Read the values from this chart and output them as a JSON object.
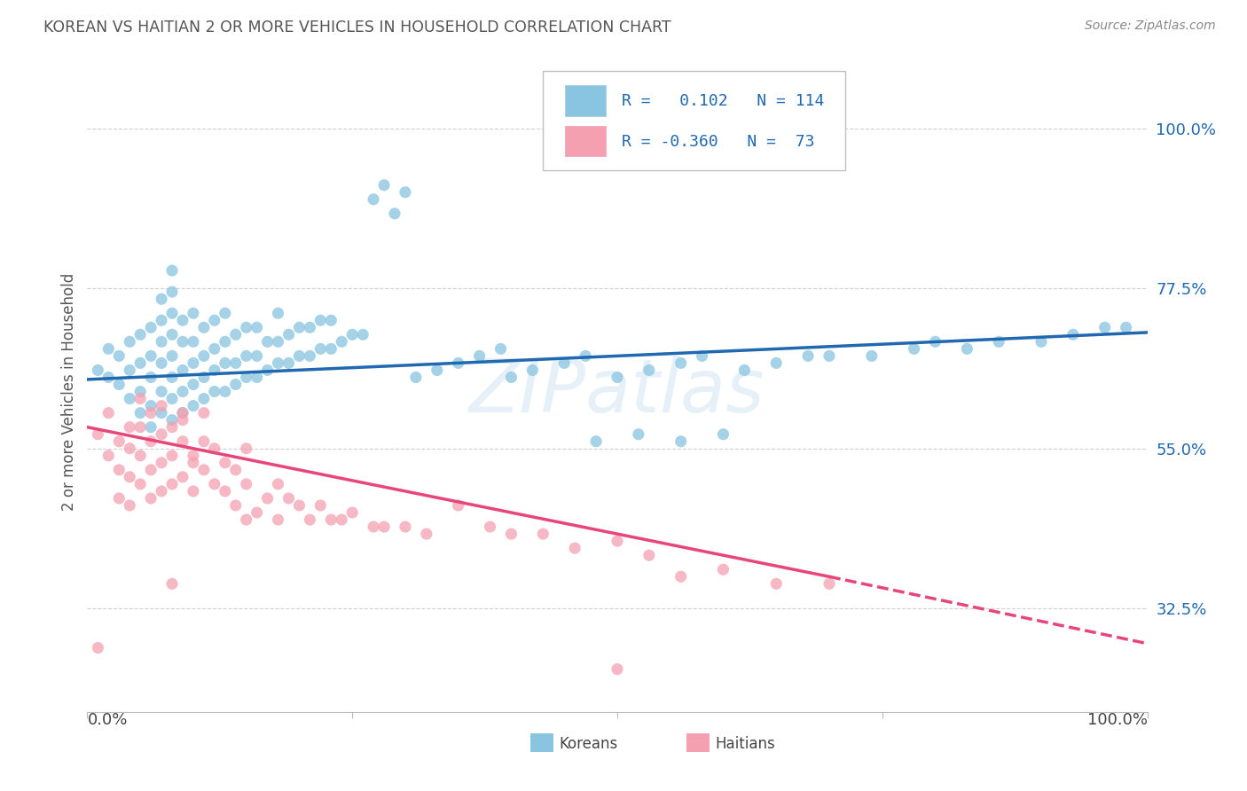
{
  "title": "KOREAN VS HAITIAN 2 OR MORE VEHICLES IN HOUSEHOLD CORRELATION CHART",
  "source": "Source: ZipAtlas.com",
  "ylabel": "2 or more Vehicles in Household",
  "watermark": "ZIPatlas",
  "xlim": [
    0.0,
    1.0
  ],
  "ylim": [
    0.18,
    1.08
  ],
  "yticks": [
    0.325,
    0.55,
    0.775,
    1.0
  ],
  "ytick_labels": [
    "32.5%",
    "55.0%",
    "77.5%",
    "100.0%"
  ],
  "korean_color": "#89c4e1",
  "haitian_color": "#f4a0b0",
  "korean_line_color": "#2068b0",
  "haitian_line_color": "#e8457a",
  "legend_korean_R": "0.102",
  "legend_korean_N": "114",
  "legend_haitian_R": "-0.360",
  "legend_haitian_N": "73",
  "background_color": "#ffffff",
  "grid_color": "#d0d0d0",
  "title_color": "#555555",
  "legend_text_color": "#2068b0",
  "korean_alpha": 0.75,
  "haitian_alpha": 0.75,
  "dot_size": 90,
  "korean_x": [
    0.01,
    0.02,
    0.02,
    0.03,
    0.03,
    0.04,
    0.04,
    0.04,
    0.05,
    0.05,
    0.05,
    0.05,
    0.06,
    0.06,
    0.06,
    0.06,
    0.06,
    0.07,
    0.07,
    0.07,
    0.07,
    0.07,
    0.07,
    0.08,
    0.08,
    0.08,
    0.08,
    0.08,
    0.08,
    0.08,
    0.08,
    0.09,
    0.09,
    0.09,
    0.09,
    0.09,
    0.1,
    0.1,
    0.1,
    0.1,
    0.1,
    0.11,
    0.11,
    0.11,
    0.11,
    0.12,
    0.12,
    0.12,
    0.12,
    0.13,
    0.13,
    0.13,
    0.13,
    0.14,
    0.14,
    0.14,
    0.15,
    0.15,
    0.15,
    0.16,
    0.16,
    0.16,
    0.17,
    0.17,
    0.18,
    0.18,
    0.18,
    0.19,
    0.19,
    0.2,
    0.2,
    0.21,
    0.21,
    0.22,
    0.22,
    0.23,
    0.23,
    0.24,
    0.25,
    0.26,
    0.27,
    0.28,
    0.29,
    0.3,
    0.31,
    0.33,
    0.35,
    0.37,
    0.39,
    0.4,
    0.42,
    0.45,
    0.47,
    0.5,
    0.53,
    0.56,
    0.58,
    0.62,
    0.65,
    0.68,
    0.7,
    0.74,
    0.78,
    0.8,
    0.83,
    0.86,
    0.9,
    0.93,
    0.96,
    0.98,
    0.48,
    0.52,
    0.56,
    0.6
  ],
  "korean_y": [
    0.66,
    0.65,
    0.69,
    0.64,
    0.68,
    0.62,
    0.66,
    0.7,
    0.6,
    0.63,
    0.67,
    0.71,
    0.58,
    0.61,
    0.65,
    0.68,
    0.72,
    0.6,
    0.63,
    0.67,
    0.7,
    0.73,
    0.76,
    0.59,
    0.62,
    0.65,
    0.68,
    0.71,
    0.74,
    0.77,
    0.8,
    0.6,
    0.63,
    0.66,
    0.7,
    0.73,
    0.61,
    0.64,
    0.67,
    0.7,
    0.74,
    0.62,
    0.65,
    0.68,
    0.72,
    0.63,
    0.66,
    0.69,
    0.73,
    0.63,
    0.67,
    0.7,
    0.74,
    0.64,
    0.67,
    0.71,
    0.65,
    0.68,
    0.72,
    0.65,
    0.68,
    0.72,
    0.66,
    0.7,
    0.67,
    0.7,
    0.74,
    0.67,
    0.71,
    0.68,
    0.72,
    0.68,
    0.72,
    0.69,
    0.73,
    0.69,
    0.73,
    0.7,
    0.71,
    0.71,
    0.9,
    0.92,
    0.88,
    0.91,
    0.65,
    0.66,
    0.67,
    0.68,
    0.69,
    0.65,
    0.66,
    0.67,
    0.68,
    0.65,
    0.66,
    0.67,
    0.68,
    0.66,
    0.67,
    0.68,
    0.68,
    0.68,
    0.69,
    0.7,
    0.69,
    0.7,
    0.7,
    0.71,
    0.72,
    0.72,
    0.56,
    0.57,
    0.56,
    0.57
  ],
  "haitian_x": [
    0.01,
    0.01,
    0.02,
    0.02,
    0.03,
    0.03,
    0.03,
    0.04,
    0.04,
    0.04,
    0.04,
    0.05,
    0.05,
    0.05,
    0.05,
    0.06,
    0.06,
    0.06,
    0.06,
    0.07,
    0.07,
    0.07,
    0.07,
    0.08,
    0.08,
    0.08,
    0.09,
    0.09,
    0.09,
    0.1,
    0.1,
    0.11,
    0.11,
    0.11,
    0.12,
    0.12,
    0.13,
    0.13,
    0.14,
    0.14,
    0.15,
    0.15,
    0.16,
    0.17,
    0.18,
    0.18,
    0.19,
    0.2,
    0.21,
    0.22,
    0.23,
    0.24,
    0.25,
    0.27,
    0.28,
    0.3,
    0.32,
    0.35,
    0.38,
    0.4,
    0.43,
    0.46,
    0.5,
    0.53,
    0.56,
    0.6,
    0.65,
    0.7,
    0.5,
    0.08,
    0.09,
    0.1,
    0.15
  ],
  "haitian_y": [
    0.27,
    0.57,
    0.54,
    0.6,
    0.56,
    0.52,
    0.48,
    0.55,
    0.51,
    0.47,
    0.58,
    0.54,
    0.5,
    0.58,
    0.62,
    0.56,
    0.52,
    0.48,
    0.6,
    0.53,
    0.49,
    0.57,
    0.61,
    0.5,
    0.54,
    0.58,
    0.51,
    0.56,
    0.6,
    0.49,
    0.53,
    0.52,
    0.56,
    0.6,
    0.5,
    0.55,
    0.49,
    0.53,
    0.47,
    0.52,
    0.5,
    0.55,
    0.46,
    0.48,
    0.5,
    0.45,
    0.48,
    0.47,
    0.45,
    0.47,
    0.45,
    0.45,
    0.46,
    0.44,
    0.44,
    0.44,
    0.43,
    0.47,
    0.44,
    0.43,
    0.43,
    0.41,
    0.42,
    0.4,
    0.37,
    0.38,
    0.36,
    0.36,
    0.24,
    0.36,
    0.59,
    0.54,
    0.45
  ],
  "korean_line_x0": 0.0,
  "korean_line_y0": 0.647,
  "korean_line_x1": 1.0,
  "korean_line_y1": 0.713,
  "haitian_line_x0": 0.0,
  "haitian_line_y0": 0.58,
  "haitian_line_x1_solid": 0.7,
  "haitian_line_y1_solid": 0.37,
  "haitian_line_x1_dashed": 1.0,
  "haitian_line_y1_dashed": 0.276
}
